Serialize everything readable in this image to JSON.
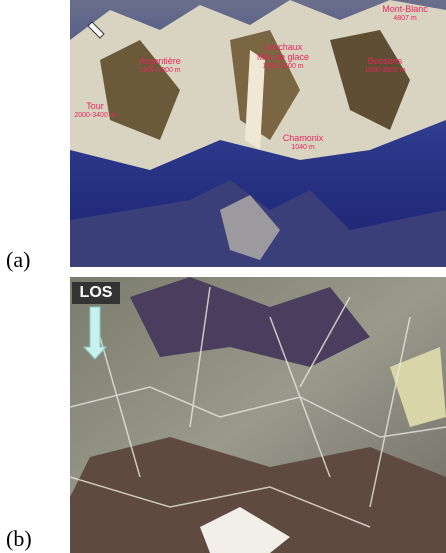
{
  "figure": {
    "panels": [
      {
        "label": "(a)",
        "annotations": [
          {
            "name": [
              "Mont-Blanc"
            ],
            "elevation": "4807 m"
          },
          {
            "name": [
              "Argentière"
            ],
            "elevation": "1500-3300 m"
          },
          {
            "name": [
              "Leschaux",
              "Mer de glace"
            ],
            "elevation": "1500-3600 m"
          },
          {
            "name": [
              "Bossons"
            ],
            "elevation": "1050-3500 m"
          },
          {
            "name": [
              "Tour"
            ],
            "elevation": "2000-3400 m"
          },
          {
            "name": [
              "Chamonix"
            ],
            "elevation": "1040 m"
          }
        ]
      },
      {
        "label": "(b)",
        "annotations": [
          {
            "name": [
              "LOS"
            ]
          }
        ]
      }
    ]
  }
}
